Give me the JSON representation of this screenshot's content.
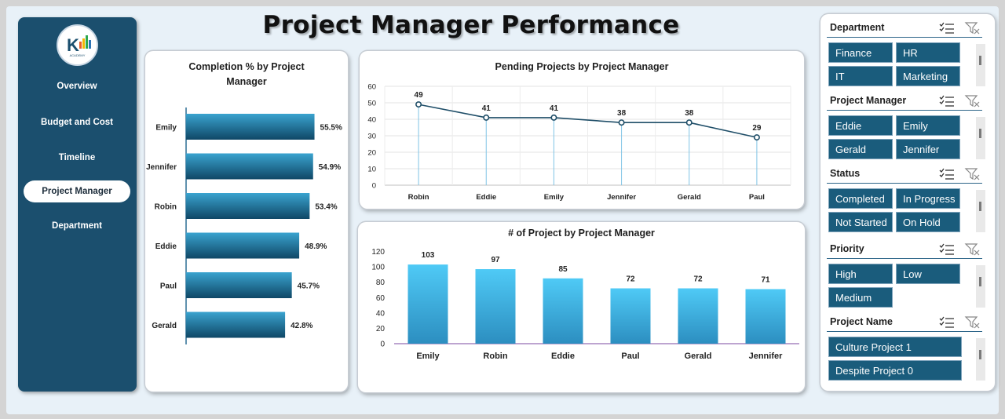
{
  "header": {
    "title": "Project Manager Performance"
  },
  "sidebar": {
    "logo": {
      "icon": "brand-logo-icon",
      "text": "K",
      "tagline": "ACADEMY"
    },
    "items": [
      {
        "label": "Overview",
        "active": false
      },
      {
        "label": "Budget and Cost",
        "active": false
      },
      {
        "label": "Timeline",
        "active": false
      },
      {
        "label": "Project Manager",
        "active": true
      },
      {
        "label": "Department",
        "active": false
      }
    ]
  },
  "charts": {
    "completion": {
      "title_line1": "Completion % by Project",
      "title_line2": "Manager"
    },
    "pending": {
      "title": "Pending Projects by Project Manager"
    },
    "count": {
      "title": "# of Project  by Project Manager"
    }
  },
  "slicers": [
    {
      "title": "Department",
      "items": [
        "Finance",
        "HR",
        "IT",
        "Marketing"
      ]
    },
    {
      "title": "Project Manager",
      "items": [
        "Eddie",
        "Emily",
        "Gerald",
        "Jennifer"
      ]
    },
    {
      "title": "Status",
      "items": [
        "Completed",
        "In Progress",
        "Not Started",
        "On Hold"
      ]
    },
    {
      "title": "Priority",
      "items": [
        "High",
        "Low",
        "Medium"
      ]
    },
    {
      "title": "Project Name",
      "items": [
        "Culture Project 1",
        "Despite Project 0"
      ]
    }
  ],
  "colors": {
    "sidebar": "#1b4f6e",
    "accent": "#1a5c7c",
    "bar_dark": "#1a5c7c",
    "bar_light": "#53c8f5",
    "line": "#1f4e68"
  },
  "chart_data": [
    {
      "type": "bar",
      "orientation": "horizontal",
      "title": "Completion % by Project Manager",
      "categories": [
        "Emily",
        "Jennifer",
        "Robin",
        "Eddie",
        "Paul",
        "Gerald"
      ],
      "values": [
        55.5,
        54.9,
        53.4,
        48.9,
        45.7,
        42.8
      ],
      "value_labels": [
        "55.5%",
        "54.9%",
        "53.4%",
        "48.9%",
        "45.7%",
        "42.8%"
      ],
      "unit": "%",
      "grid": false,
      "legend": "none"
    },
    {
      "type": "line",
      "title": "Pending Projects by Project Manager",
      "categories": [
        "Robin",
        "Eddie",
        "Emily",
        "Jennifer",
        "Gerald",
        "Paul"
      ],
      "values": [
        49,
        41,
        41,
        38,
        38,
        29
      ],
      "ylim": [
        0,
        60
      ],
      "yticks": [
        0,
        10,
        20,
        30,
        40,
        50,
        60
      ],
      "grid": true,
      "legend": "none"
    },
    {
      "type": "bar",
      "title": "# of Project  by Project Manager",
      "categories": [
        "Emily",
        "Robin",
        "Eddie",
        "Paul",
        "Gerald",
        "Jennifer"
      ],
      "values": [
        103,
        97,
        85,
        72,
        72,
        71
      ],
      "ylim": [
        0,
        120
      ],
      "yticks": [
        0,
        20,
        40,
        60,
        80,
        100,
        120
      ],
      "grid": false,
      "legend": "none"
    }
  ]
}
